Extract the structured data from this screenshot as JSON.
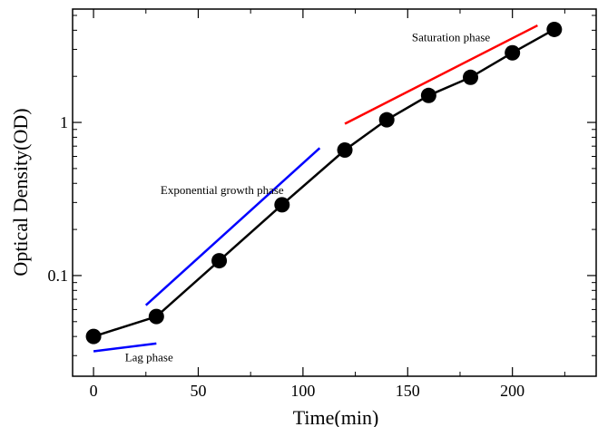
{
  "chart_data": {
    "type": "line",
    "xlabel": "Time(min)",
    "ylabel": "Optical Density(OD)",
    "xlim": [
      -10,
      240
    ],
    "ylim": [
      0.022,
      5.5
    ],
    "yscale": "log",
    "grid": false,
    "xticks": [
      0,
      50,
      100,
      150,
      200
    ],
    "yticks": [
      0.1,
      1
    ],
    "yticklabels": [
      "0.1",
      "1"
    ],
    "series": [
      {
        "color": "#000000",
        "marker": "circle",
        "x": [
          0,
          30,
          60,
          90,
          120,
          140,
          160,
          180,
          200,
          220
        ],
        "y": [
          0.04,
          0.054,
          0.125,
          0.29,
          0.66,
          1.04,
          1.5,
          1.97,
          2.85,
          4.05
        ]
      }
    ],
    "trend_lines": [
      {
        "phase": "lag",
        "color": "#0000ff",
        "x": [
          0,
          30
        ],
        "y": [
          0.032,
          0.036
        ]
      },
      {
        "phase": "exponential",
        "color": "#0000ff",
        "x": [
          25,
          108
        ],
        "y": [
          0.064,
          0.68
        ]
      },
      {
        "phase": "saturation",
        "color": "#ff0000",
        "x": [
          120,
          212
        ],
        "y": [
          0.98,
          4.3
        ]
      }
    ],
    "annotations": [
      {
        "text": "Lag phase",
        "x": 15,
        "y": 0.0275
      },
      {
        "text": "Exponential growth phase",
        "x": 32,
        "y": 0.34
      },
      {
        "text": "Saturation phase",
        "x": 152,
        "y": 3.4
      }
    ]
  }
}
